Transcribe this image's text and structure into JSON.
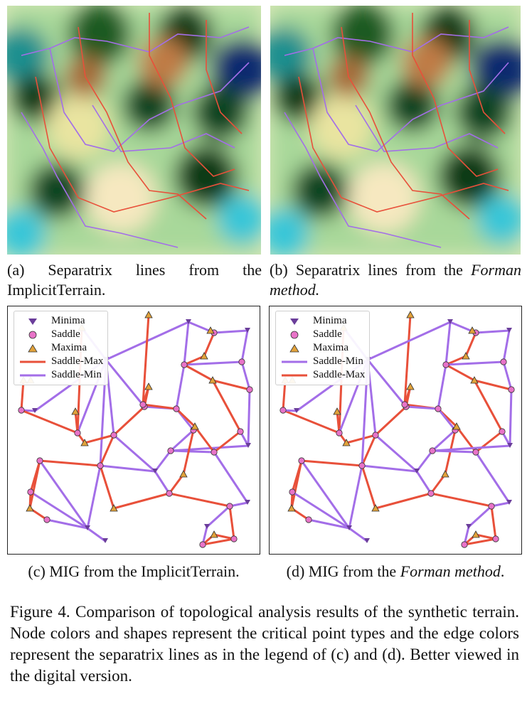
{
  "panels": {
    "a": {
      "caption_label": "(a)",
      "caption_text": "Separatrix lines from the ImplicitTerrain."
    },
    "b": {
      "caption_label": "(b)",
      "caption_text_pre": "Separatrix lines from the ",
      "caption_method": "Forman",
      "caption_text_post": "method."
    },
    "c": {
      "caption": "(c) MIG from the ImplicitTerrain."
    },
    "d": {
      "caption_pre": "(d) MIG from the ",
      "caption_method": "Forman method",
      "caption_post": "."
    }
  },
  "legend_c": [
    "Minima",
    "Saddle",
    "Maxima",
    "Saddle-Max",
    "Saddle-Min"
  ],
  "legend_d": [
    "Minima",
    "Saddle",
    "Maxima",
    "Saddle-Min",
    "Saddle-Max"
  ],
  "figure_caption": "Figure 4.  Comparison of topological analysis results of the synthetic terrain. Node colors and shapes represent the critical point types and the edge colors represent the separatrix lines as in the legend of (c) and (d). Better viewed in the digital version.",
  "colors": {
    "saddle_max": "#e8503a",
    "saddle_min": "#a36ee8",
    "minima": "#6a3d9a",
    "saddle": "#e873c8",
    "maxima": "#e2a23a"
  }
}
